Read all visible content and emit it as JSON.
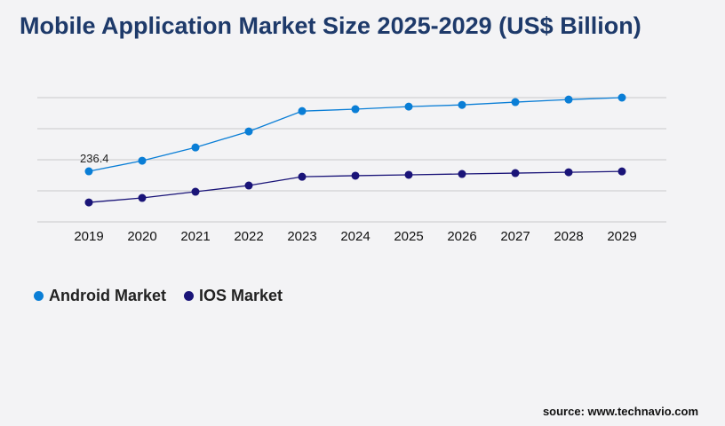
{
  "title": "Mobile Application Market Size 2025-2029 (US$ Billion)",
  "source": "source: www.technavio.com",
  "chart_data": {
    "type": "line",
    "title": "Mobile Application Market Size 2025-2029 (US$ Billion)",
    "x": [
      "2019",
      "2020",
      "2021",
      "2022",
      "2023",
      "2024",
      "2025",
      "2026",
      "2027",
      "2028",
      "2029"
    ],
    "ylim": [
      0,
      581
    ],
    "grid": true,
    "legend_placement": "bottom-left",
    "series": [
      {
        "name": "Android Market",
        "color": "#0a7ed6",
        "values": [
          236.4,
          286,
          348,
          423,
          518,
          527,
          539,
          547,
          560,
          572,
          581
        ]
      },
      {
        "name": "IOS Market",
        "color": "#1a1478",
        "values": [
          91,
          112,
          141,
          170,
          211,
          216,
          220,
          224,
          228,
          232,
          236
        ]
      }
    ],
    "data_labels": [
      {
        "series": 0,
        "index": 0,
        "text": "236.4"
      }
    ]
  }
}
